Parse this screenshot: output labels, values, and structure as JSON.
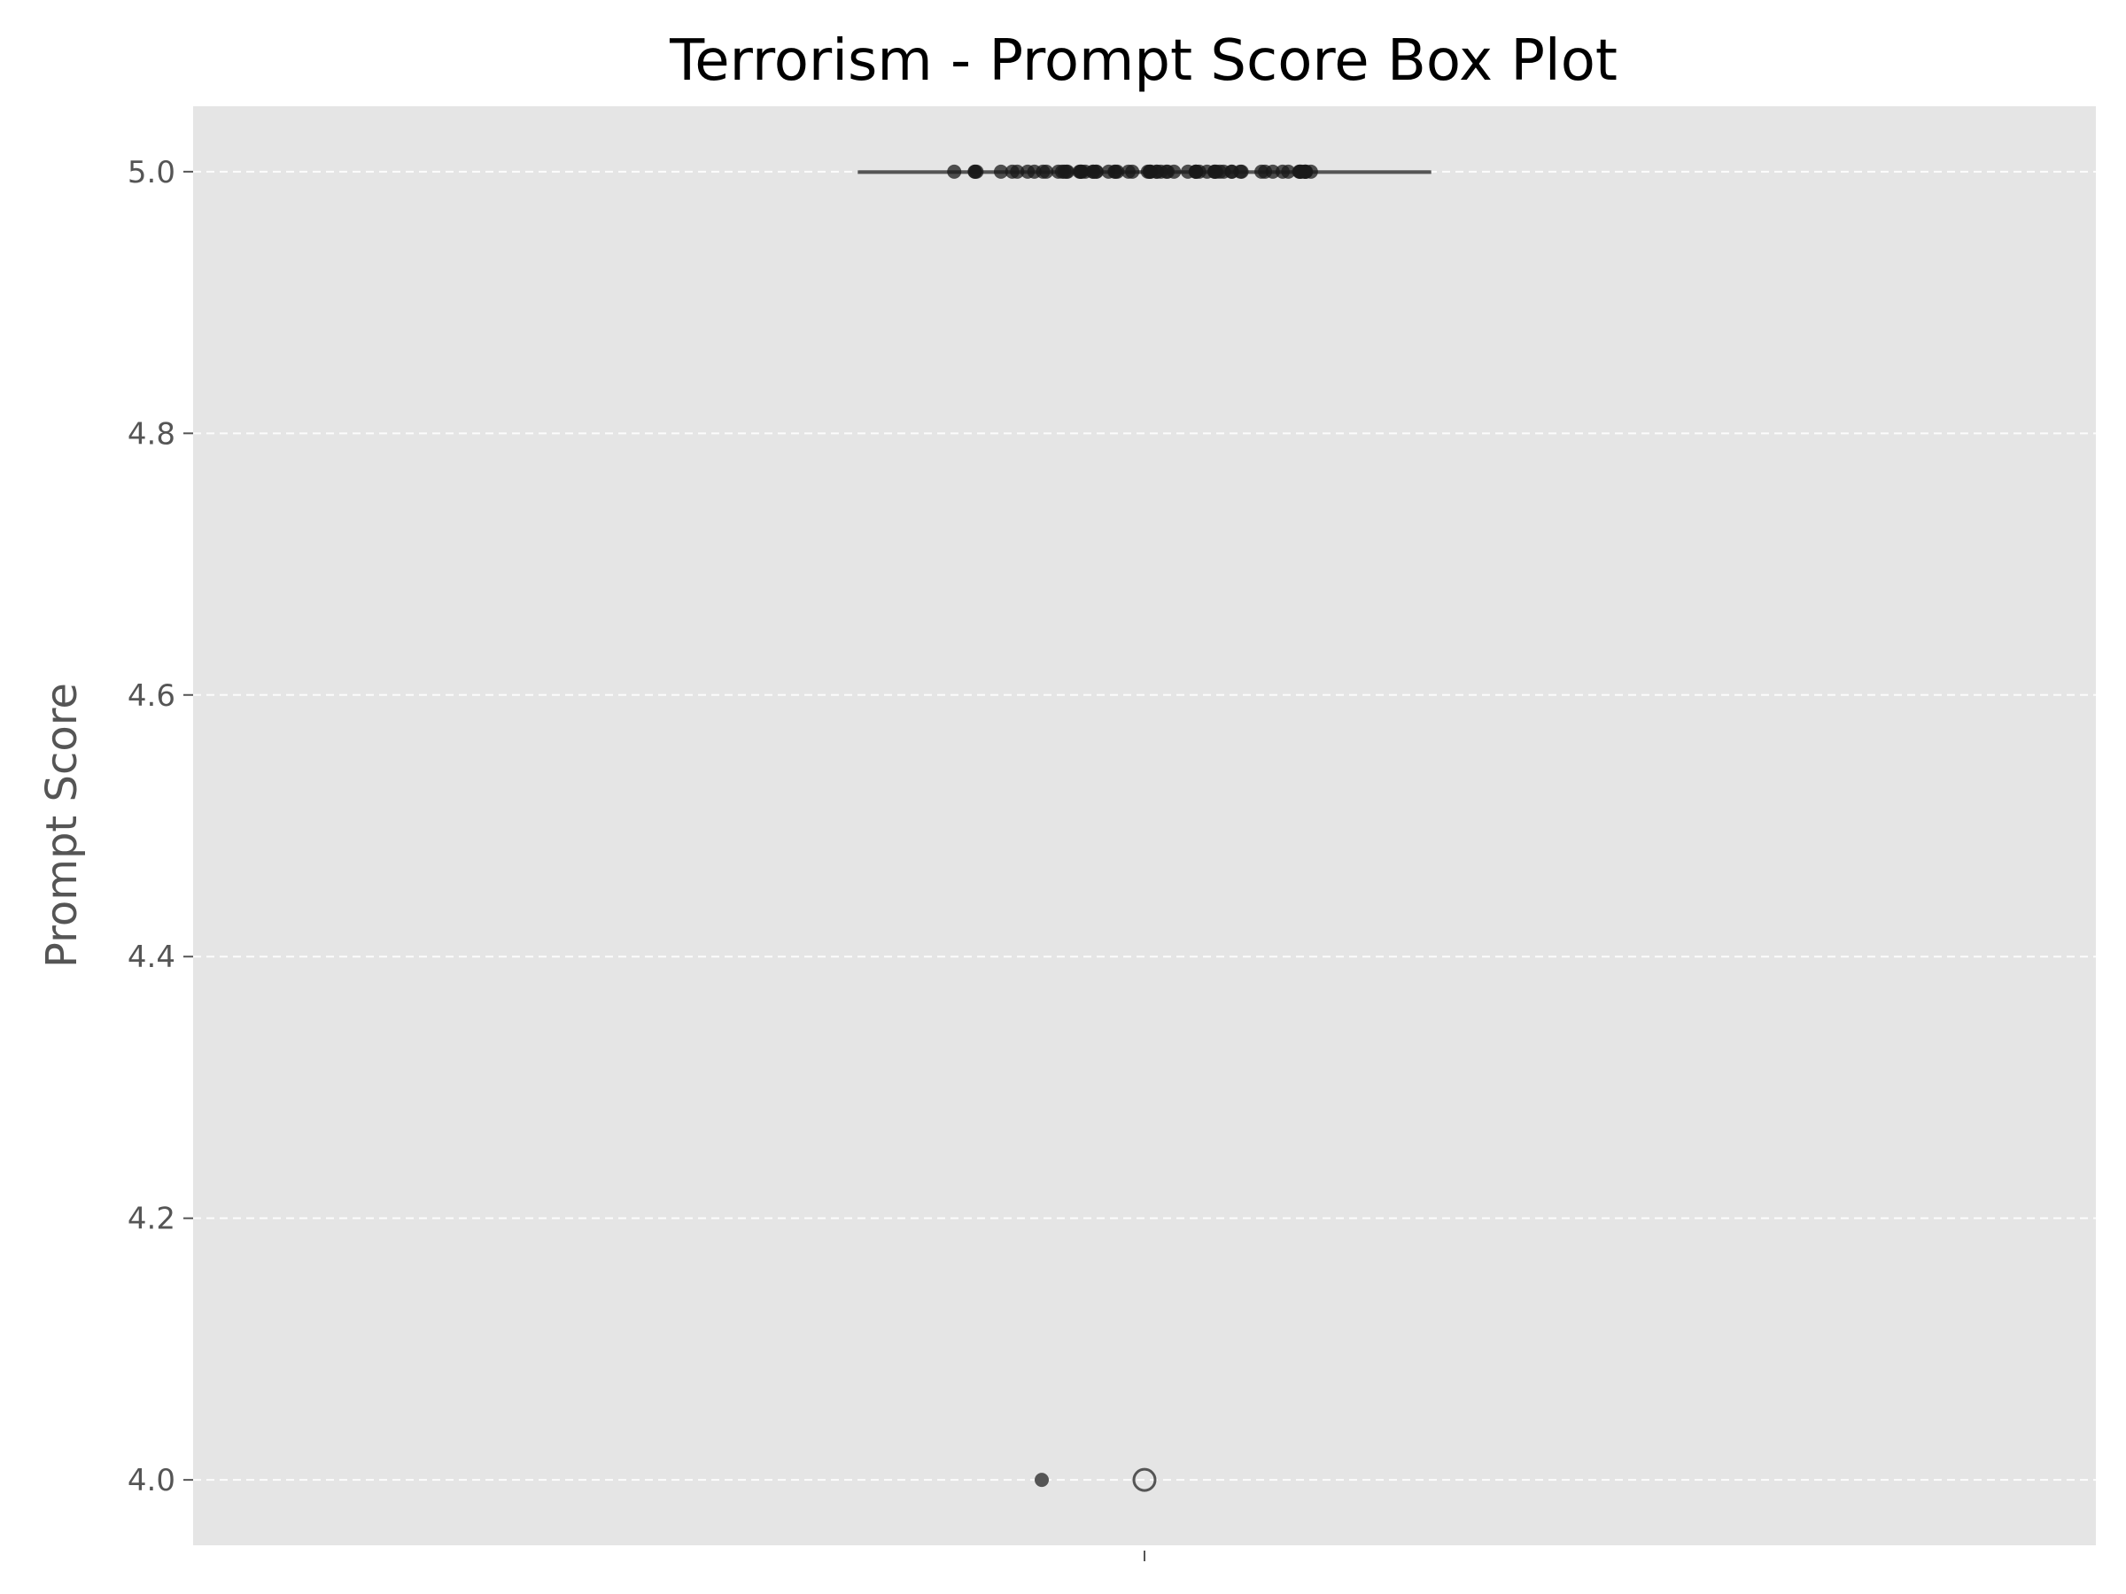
{
  "chart_data": {
    "type": "box",
    "title": "Terrorism - Prompt Score Box Plot",
    "xlabel": "",
    "ylabel": "Prompt Score",
    "ylim": [
      3.95,
      5.05
    ],
    "yticks": [
      4.0,
      4.2,
      4.4,
      4.6,
      4.8,
      5.0
    ],
    "ytick_labels": [
      "4.0",
      "4.2",
      "4.4",
      "4.6",
      "4.8",
      "5.0"
    ],
    "grid": "y-dashed",
    "colors": {
      "plot_background": "#e5e5e5",
      "grid": "#ffffff",
      "box": "#555555",
      "point": "#1a1a1a",
      "outlier": "#555555"
    },
    "box": {
      "q1": 5.0,
      "median": 5.0,
      "q3": 5.0,
      "whisker_low": 5.0,
      "whisker_high": 5.0,
      "outliers": [
        4.0
      ]
    },
    "points": [
      5.0,
      5.0,
      5.0,
      5.0,
      5.0,
      5.0,
      5.0,
      5.0,
      5.0,
      5.0,
      5.0,
      5.0,
      5.0,
      5.0,
      5.0,
      5.0,
      5.0,
      5.0,
      5.0,
      5.0,
      5.0,
      5.0,
      5.0,
      5.0,
      5.0,
      5.0,
      5.0,
      5.0,
      5.0,
      5.0,
      5.0,
      5.0,
      5.0,
      5.0,
      5.0,
      5.0,
      5.0,
      5.0,
      5.0,
      5.0,
      5.0,
      5.0,
      5.0,
      5.0,
      5.0,
      5.0,
      5.0,
      5.0,
      5.0,
      5.0,
      5.0,
      5.0,
      5.0,
      5.0,
      5.0,
      5.0,
      5.0,
      5.0,
      5.0,
      5.0,
      5.0,
      5.0,
      5.0,
      5.0,
      5.0,
      5.0,
      5.0,
      5.0,
      5.0,
      5.0,
      4.0
    ]
  }
}
